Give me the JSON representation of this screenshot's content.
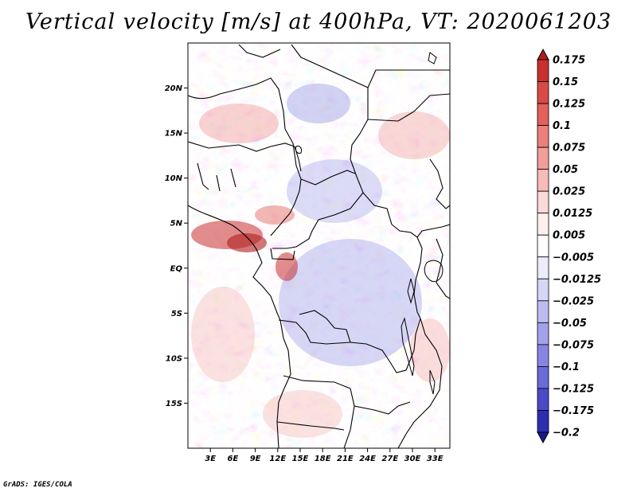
{
  "title": "Vertical velocity [m/s] at 400hPa, VT: 2020061203",
  "credit": "GrADS: IGES/COLA",
  "map": {
    "variable": "Vertical velocity",
    "units": "m/s",
    "level": "400hPa",
    "valid_time": "2020061203",
    "lon_range": [
      0,
      35
    ],
    "lat_range": [
      -20,
      25
    ],
    "lat_ticks": [
      "20N",
      "15N",
      "10N",
      "5N",
      "EQ",
      "5S",
      "10S",
      "15S"
    ],
    "lat_tick_values": [
      20,
      15,
      10,
      5,
      0,
      -5,
      -10,
      -15
    ],
    "lon_ticks": [
      "3E",
      "6E",
      "9E",
      "12E",
      "15E",
      "18E",
      "21E",
      "24E",
      "27E",
      "30E",
      "33E"
    ],
    "lon_tick_values": [
      3,
      6,
      9,
      12,
      15,
      18,
      21,
      24,
      27,
      30,
      33
    ]
  },
  "colorbar": {
    "labels": [
      "0.175",
      "0.15",
      "0.125",
      "0.1",
      "0.075",
      "0.05",
      "0.025",
      "0.0125",
      "0.005",
      "−0.005",
      "−0.0125",
      "−0.025",
      "−0.05",
      "−0.075",
      "−0.1",
      "−0.125",
      "−0.175",
      "−0.2"
    ],
    "colors": [
      "#b01c1c",
      "#c8302e",
      "#d84a46",
      "#e3605c",
      "#ec7f7b",
      "#f29e9a",
      "#f7bcb9",
      "#fbd9d7",
      "#fdefee",
      "#ffffff",
      "#ececfb",
      "#d6d6f6",
      "#bcbcf0",
      "#a2a2ea",
      "#8686e2",
      "#6a6ad8",
      "#4a4ac8",
      "#2d2db0",
      "#1a1a90"
    ]
  }
}
